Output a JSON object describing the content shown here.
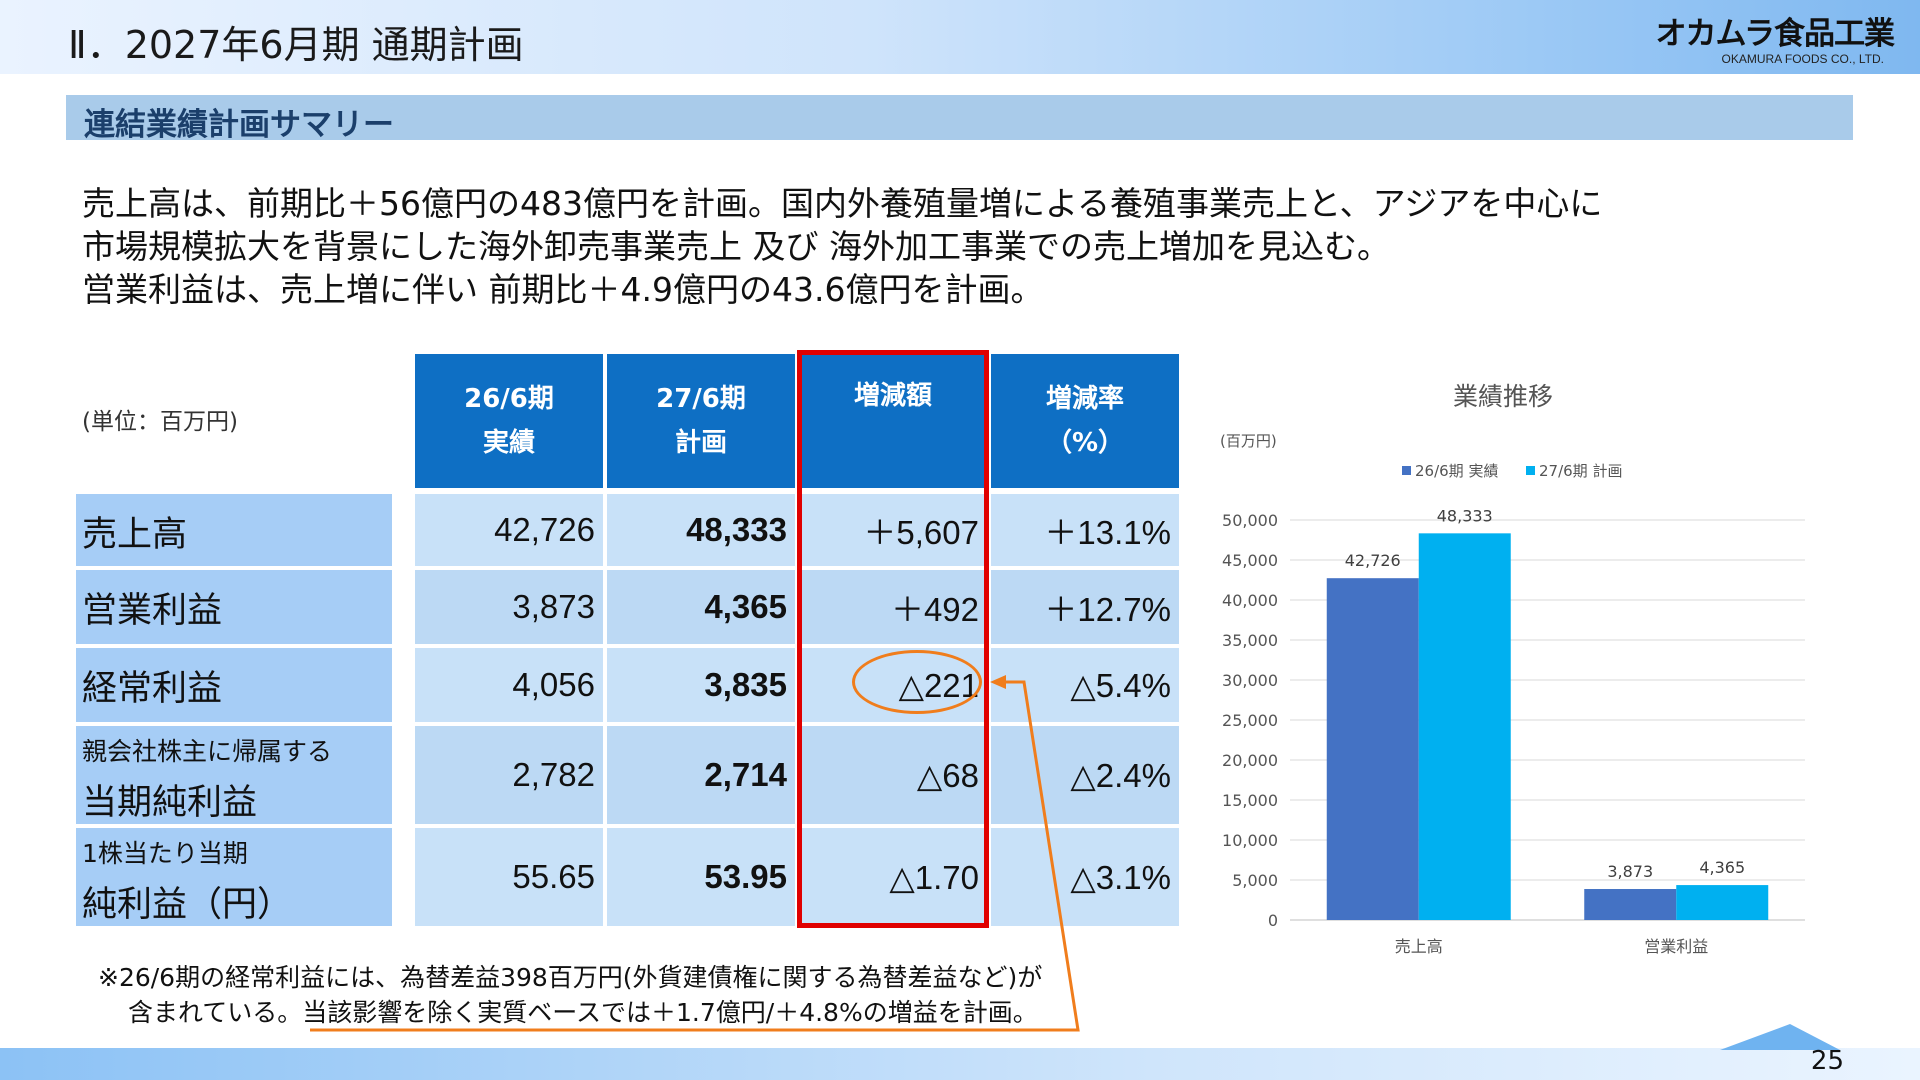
{
  "header": {
    "title": "Ⅱ．2027年6月期 通期計画",
    "logo_main": "オカムラ食品工業",
    "logo_sub": "OKAMURA FOODS CO., LTD."
  },
  "section": {
    "title": "連結業績計画サマリー"
  },
  "summary_lines": [
    "売上高は、前期比＋56億円の483億円を計画。国内外養殖量増による養殖事業売上と、アジアを中心に",
    "市場規模拡大を背景にした海外卸売事業売上 及び 海外加工事業での売上増加を見込む。",
    "営業利益は、売上増に伴い 前期比＋4.9億円の43.6億円を計画。"
  ],
  "table": {
    "unit": "(単位：百万円)",
    "headers": [
      {
        "line1": "26/6期",
        "line2": "実績"
      },
      {
        "line1": "27/6期",
        "line2": "計画"
      },
      {
        "line1": "増減額",
        "line2": ""
      },
      {
        "line1": "増減率",
        "line2": "（%）"
      }
    ],
    "rows": [
      {
        "label1": "売上高",
        "label2": "",
        "actual": "42,726",
        "plan": "48,333",
        "diff": "＋5,607",
        "rate": "＋13.1%"
      },
      {
        "label1": "営業利益",
        "label2": "",
        "actual": "3,873",
        "plan": "4,365",
        "diff": "＋492",
        "rate": "＋12.7%"
      },
      {
        "label1": "経常利益",
        "label2": "",
        "actual": "4,056",
        "plan": "3,835",
        "diff": "△221",
        "rate": "△5.4%"
      },
      {
        "label1": "親会社株主に帰属する",
        "label2": "当期純利益",
        "actual": "2,782",
        "plan": "2,714",
        "diff": "△68",
        "rate": "△2.4%"
      },
      {
        "label1": "1株当たり当期",
        "label2": "純利益（円）",
        "actual": "55.65",
        "plan": "53.95",
        "diff": "△1.70",
        "rate": "△3.1%"
      }
    ]
  },
  "footnote": {
    "line1": "※26/6期の経常利益には、為替差益398百万円(外貨建債権に関する為替差益など)が",
    "line2_a": "含まれている。",
    "line2_b": "当該影響を除く実質ベースでは＋1.7億円/＋4.8%の増益を計画。"
  },
  "chart_data": {
    "type": "bar",
    "title": "業績推移",
    "ylabel": "(百万円)",
    "categories": [
      "売上高",
      "営業利益"
    ],
    "series": [
      {
        "name": "26/6期 実績",
        "values": [
          42726,
          3873
        ],
        "color": "#4472c4"
      },
      {
        "name": "27/6期 計画",
        "values": [
          48333,
          4365
        ],
        "color": "#00b0f0"
      }
    ],
    "data_labels": [
      [
        "42,726",
        "3,873"
      ],
      [
        "48,333",
        "4,365"
      ]
    ],
    "ylim": [
      0,
      50000
    ],
    "yticks": [
      "0",
      "5,000",
      "10,000",
      "15,000",
      "20,000",
      "25,000",
      "30,000",
      "35,000",
      "40,000",
      "45,000",
      "50,000"
    ],
    "grid": true,
    "legend": "top"
  },
  "colors": {
    "table_header": "#0e6fc4",
    "highlight_box": "#e00000",
    "annotation": "#f07d1c"
  },
  "page_number": "25"
}
